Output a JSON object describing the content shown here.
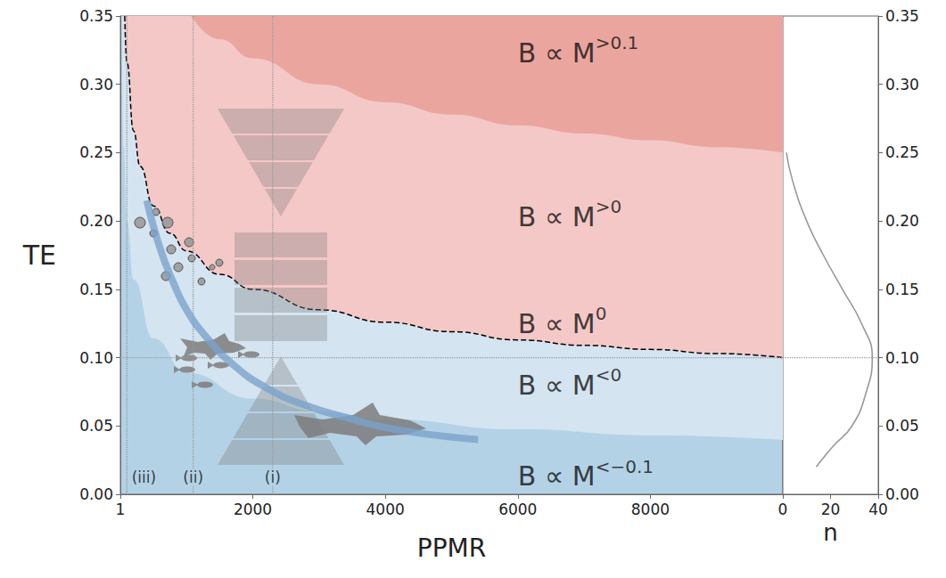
{
  "chart_data": [
    {
      "type": "line",
      "x_label": "PPMR",
      "y_label": "TE",
      "xlim": [
        1,
        10000
      ],
      "xticks": [
        1,
        2000,
        4000,
        6000,
        8000
      ],
      "ylim": [
        0,
        0.35
      ],
      "yticks": [
        {
          "value": 0,
          "label": "0.00"
        },
        {
          "value": 0.05,
          "label": "0.05"
        },
        {
          "value": 0.1,
          "label": "0.10"
        },
        {
          "value": 0.15,
          "label": "0.15"
        },
        {
          "value": 0.2,
          "label": "0.20"
        },
        {
          "value": 0.25,
          "label": "0.25"
        },
        {
          "value": 0.3,
          "label": "0.30"
        },
        {
          "value": 0.35,
          "label": "0.35"
        }
      ],
      "series": [
        {
          "type": "area",
          "color": "#d4e4f0",
          "x": [
            20,
            50,
            100,
            200,
            500,
            1000,
            2000,
            3000,
            4000,
            6000,
            8000,
            10000
          ],
          "values": [
            0.35,
            0.254,
            0.2,
            0.157,
            0.114,
            0.089,
            0.07,
            0.0606,
            0.0549,
            0.0475,
            0.0431,
            0.0398
          ]
        },
        {
          "type": "area",
          "color": "#f4c8c6",
          "line_style": "dashed",
          "x": [
            67,
            100,
            200,
            300,
            500,
            750,
            1000,
            1500,
            2000,
            3000,
            4000,
            5000,
            6000,
            7000,
            8000,
            9000,
            10000
          ],
          "values": [
            0.35,
            0.316,
            0.266,
            0.24,
            0.211,
            0.191,
            0.178,
            0.161,
            0.15,
            0.135,
            0.126,
            0.119,
            0.113,
            0.109,
            0.106,
            0.103,
            0.1
          ]
        },
        {
          "type": "area",
          "color": "#eba59f",
          "x": [
            1069,
            1500,
            2000,
            3000,
            4000,
            5000,
            6000,
            7000,
            8000,
            9000,
            10000
          ],
          "values": [
            0.35,
            0.333,
            0.319,
            0.3,
            0.287,
            0.278,
            0.27,
            0.264,
            0.259,
            0.254,
            0.25
          ]
        },
        {
          "type": "line",
          "color": "#7ba3cc",
          "x": [
            400,
            600,
            800,
            1000,
            1300,
            1700,
            2200,
            2800,
            3500,
            4200,
            5400
          ],
          "values": [
            0.215,
            0.18,
            0.155,
            0.135,
            0.115,
            0.095,
            0.078,
            0.065,
            0.055,
            0.047,
            0.04
          ]
        }
      ],
      "hline": 0.1,
      "vlines": [
        {
          "x": 100,
          "label": "(iii)"
        },
        {
          "x": 1100,
          "label": "(ii)"
        },
        {
          "x": 2300,
          "label": "(i)"
        }
      ],
      "annotations": [
        {
          "x": 6000,
          "y": 0.325,
          "text": "B ∝ M",
          "sup": ">0.1"
        },
        {
          "x": 6000,
          "y": 0.205,
          "text": "B ∝ M",
          "sup": ">0"
        },
        {
          "x": 6000,
          "y": 0.127,
          "text": "B ∝ M",
          "sup": "0"
        },
        {
          "x": 6000,
          "y": 0.082,
          "text": "B ∝ M",
          "sup": "<0"
        },
        {
          "x": 6000,
          "y": 0.015,
          "text": "B ∝ M",
          "sup": "<−0.1"
        }
      ]
    },
    {
      "type": "line",
      "x_label": "n",
      "xlim": [
        0,
        40
      ],
      "xticks": [
        0,
        20,
        40
      ],
      "ylim": [
        0,
        0.35
      ],
      "yticks": [
        {
          "value": 0,
          "label": "0.00"
        },
        {
          "value": 0.05,
          "label": "0.05"
        },
        {
          "value": 0.1,
          "label": "0.10"
        },
        {
          "value": 0.15,
          "label": "0.15"
        },
        {
          "value": 0.2,
          "label": "0.20"
        },
        {
          "value": 0.25,
          "label": "0.25"
        },
        {
          "value": 0.3,
          "label": "0.30"
        },
        {
          "value": 0.35,
          "label": "0.35"
        }
      ],
      "series": [
        {
          "type": "line",
          "color": "#999999",
          "x": [
            1.5,
            4,
            10,
            17,
            25,
            33,
            37.5,
            35,
            29,
            21,
            14
          ],
          "values": [
            0.25,
            0.23,
            0.2,
            0.175,
            0.15,
            0.125,
            0.1,
            0.075,
            0.05,
            0.035,
            0.02
          ]
        }
      ],
      "hline": 0.1
    }
  ]
}
